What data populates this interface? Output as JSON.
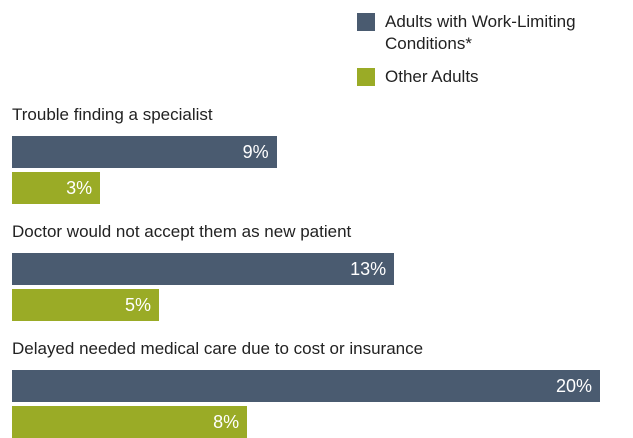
{
  "chart_data": {
    "type": "bar",
    "orientation": "horizontal",
    "categories": [
      "Trouble finding a specialist",
      "Doctor would not accept them as new patient",
      "Delayed needed medical care due to cost or insurance"
    ],
    "series": [
      {
        "name": "Adults with Work-Limiting Conditions*",
        "color": "#4a5b70",
        "values": [
          9,
          13,
          20
        ],
        "value_labels": [
          "9%",
          "13%",
          "20%"
        ]
      },
      {
        "name": "Other Adults",
        "color": "#9aab26",
        "values": [
          3,
          5,
          8
        ],
        "value_labels": [
          "3%",
          "5%",
          "8%"
        ]
      }
    ],
    "legend": "top-right"
  }
}
